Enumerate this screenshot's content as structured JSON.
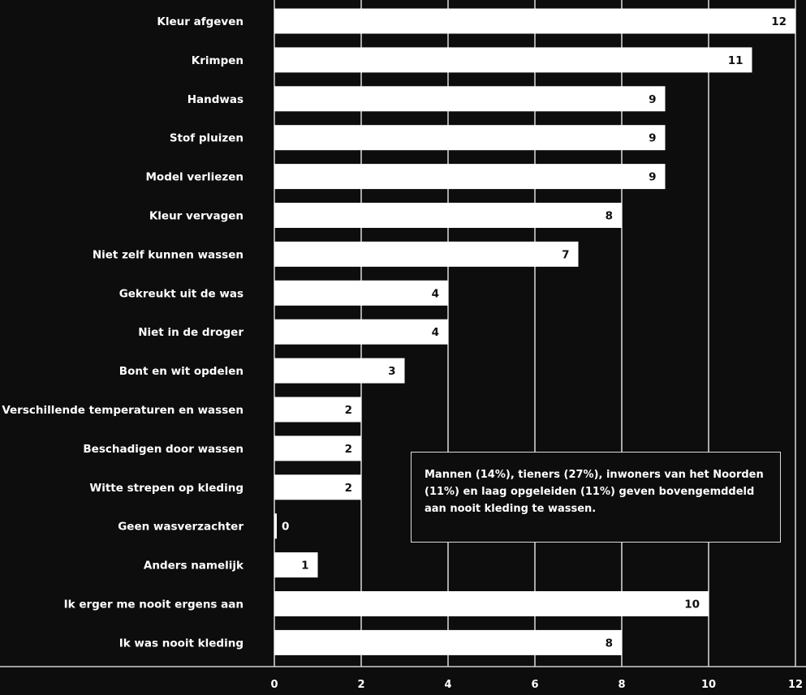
{
  "chart_data": {
    "type": "bar",
    "orientation": "horizontal",
    "categories": [
      "Kleur afgeven",
      "Krimpen",
      "Handwas",
      "Stof pluizen",
      "Model verliezen",
      "Kleur vervagen",
      "Niet zelf kunnen wassen",
      "Gekreukt uit de was",
      "Niet in de droger",
      "Bont en wit opdelen",
      "Verschillende temperaturen en wassen",
      "Beschadigen door wassen",
      "Witte strepen op kleding",
      "Geen wasverzachter",
      "Anders namelijk",
      "Ik erger me nooit ergens aan",
      "Ik was nooit kleding"
    ],
    "values": [
      12,
      11,
      9,
      9,
      9,
      8,
      7,
      4,
      4,
      3,
      2,
      2,
      2,
      0,
      1,
      10,
      8
    ],
    "xlim": [
      0,
      12
    ],
    "xticks": [
      0,
      2,
      4,
      6,
      8,
      10,
      12
    ],
    "grid": true,
    "title": "",
    "xlabel": "",
    "ylabel": "",
    "colors": {
      "background": "#0d0d0d",
      "bar": "#ffffff",
      "grid": "#ffffff",
      "text": "#ffffff",
      "value_text": "#111111"
    }
  },
  "annotation": {
    "text": "Mannen (14%), tieners (27%), inwoners van het Noorden (11%) en laag opgeleiden (11%) geven bovengemddeld aan nooit kleding te wassen."
  }
}
